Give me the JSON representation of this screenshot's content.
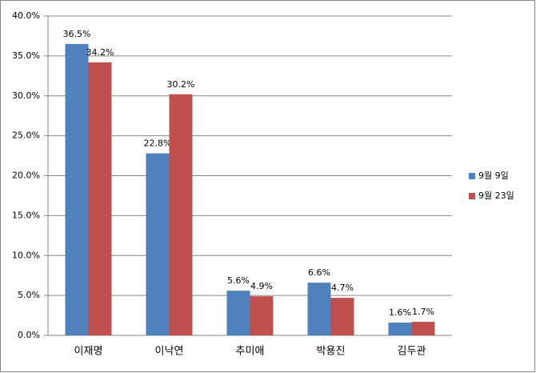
{
  "chart_data": {
    "type": "bar",
    "categories": [
      "이재명",
      "이낙연",
      "추미애",
      "박용진",
      "김두관"
    ],
    "series": [
      {
        "name": "9월 9일",
        "color": "#4f81bd",
        "values": [
          36.5,
          22.8,
          5.6,
          6.6,
          1.6
        ],
        "value_labels": [
          "36.5%",
          "22.8%",
          "5.6%",
          "6.6%",
          "1.6%"
        ]
      },
      {
        "name": "9월 23일",
        "color": "#c0504d",
        "values": [
          34.2,
          30.2,
          4.9,
          4.7,
          1.7
        ],
        "value_labels": [
          "34.2%",
          "30.2%",
          "4.9%",
          "4.7%",
          "1.7%"
        ]
      }
    ],
    "ylim": [
      0,
      40
    ],
    "yticks": [
      {
        "value": 0,
        "label": "0.0%"
      },
      {
        "value": 5,
        "label": "5.0%"
      },
      {
        "value": 10,
        "label": "10.0%"
      },
      {
        "value": 15,
        "label": "15.0%"
      },
      {
        "value": 20,
        "label": "20.0%"
      },
      {
        "value": 25,
        "label": "25.0%"
      },
      {
        "value": 30,
        "label": "30.0%"
      },
      {
        "value": 35,
        "label": "35.0%"
      },
      {
        "value": 40,
        "label": "40.0%"
      }
    ],
    "grid": true,
    "legend": "right"
  }
}
